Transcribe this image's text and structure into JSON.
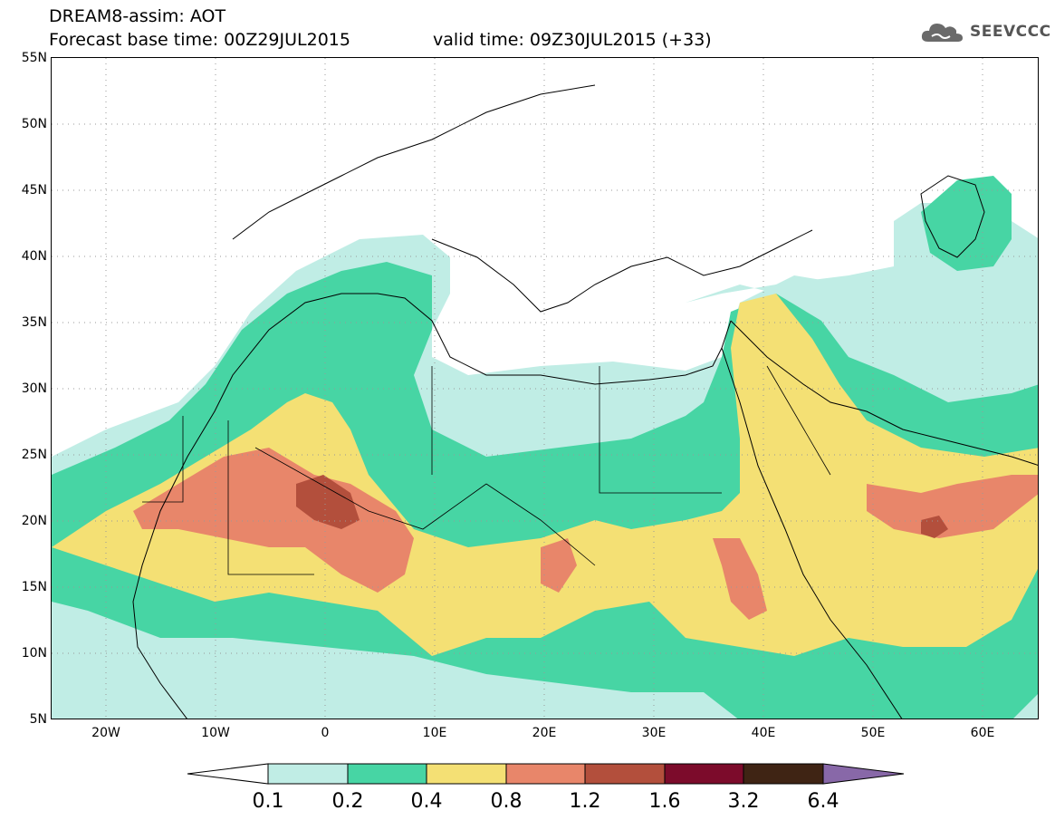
{
  "header": {
    "line1": "DREAM8-assim: AOT",
    "line2": "Forecast base time: 00Z29JUL2015",
    "valid": "valid time: 09Z30JUL2015 (+33)"
  },
  "logo": {
    "text": "SEEVCCC",
    "icon": "cloud-icon"
  },
  "map": {
    "type": "contour-map",
    "variable": "AOT",
    "lat_range": [
      5,
      55
    ],
    "lon_range": [
      -25,
      65
    ],
    "lat_ticks": [
      "55N",
      "50N",
      "45N",
      "40N",
      "35N",
      "30N",
      "25N",
      "20N",
      "15N",
      "10N",
      "5N"
    ],
    "lon_ticks": [
      "20W",
      "10W",
      "0",
      "10E",
      "20E",
      "30E",
      "40E",
      "50E",
      "60E"
    ],
    "grid": "dotted"
  },
  "colorbar": {
    "labels": [
      "0.1",
      "0.2",
      "0.4",
      "0.8",
      "1.2",
      "1.6",
      "3.2",
      "6.4"
    ],
    "colors": [
      "#ffffff",
      "#c0ede5",
      "#47d5a4",
      "#f4e074",
      "#e8866a",
      "#b34f3c",
      "#7c0b2b",
      "#3f2414",
      "#8868a8"
    ]
  }
}
